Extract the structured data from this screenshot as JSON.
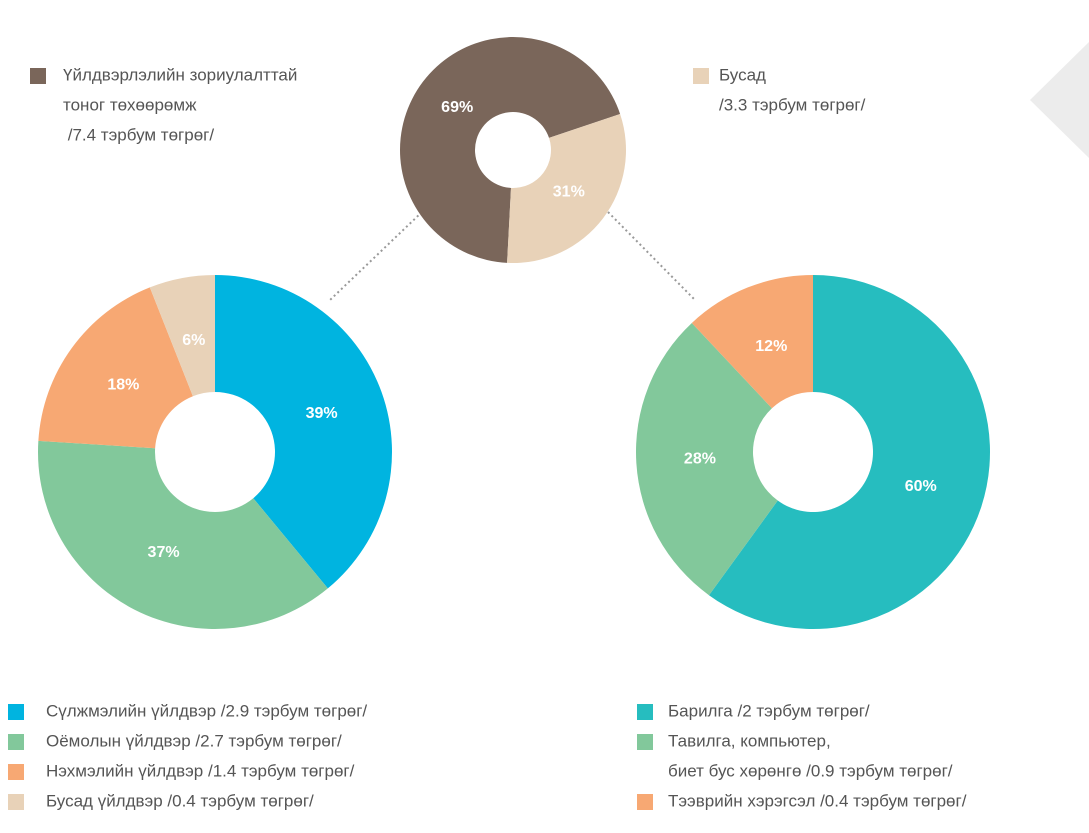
{
  "chart_data": [
    {
      "type": "pie",
      "donut": true,
      "categories": [
        [
          "Үйлдвэрлэлийн зориулалттай",
          "тоног төхөөрөмж",
          " /7.4 тэрбум төгрөг/"
        ],
        [
          "Бусад",
          "/3.3 тэрбум төгрөг/"
        ]
      ],
      "values": [
        69,
        31
      ],
      "value_labels": [
        "69%",
        "31%"
      ],
      "colors": [
        "#7a665a",
        "#e8d2b8"
      ]
    },
    {
      "type": "pie",
      "donut": true,
      "categories": [
        [
          "Сүлжмэлийн үйлдвэр /2.9 тэрбум төгрөг/"
        ],
        [
          "Оёмолын үйлдвэр /2.7 тэрбум төгрөг/"
        ],
        [
          "Нэхмэлийн үйлдвэр /1.4 тэрбум төгрөг/"
        ],
        [
          "Бусад үйлдвэр /0.4 тэрбум төгрөг/"
        ]
      ],
      "values": [
        39,
        37,
        18,
        6
      ],
      "value_labels": [
        "39%",
        "37%",
        "18%",
        "6%"
      ],
      "colors": [
        "#00b4e0",
        "#82c89b",
        "#f7a873",
        "#e8d2b8"
      ]
    },
    {
      "type": "pie",
      "donut": true,
      "categories": [
        [
          "Барилга /2 тэрбум төгрөг/"
        ],
        [
          "Тавилга, компьютер,",
          "биет бус хөрөнгө /0.9 тэрбум төгрөг/"
        ],
        [
          "Тээврийн хэрэгсэл /0.4 тэрбум төгрөг/"
        ]
      ],
      "values": [
        60,
        28,
        12
      ],
      "value_labels": [
        "60%",
        "28%",
        "12%"
      ],
      "colors": [
        "#26bdbf",
        "#82c89b",
        "#f7a873"
      ]
    }
  ]
}
